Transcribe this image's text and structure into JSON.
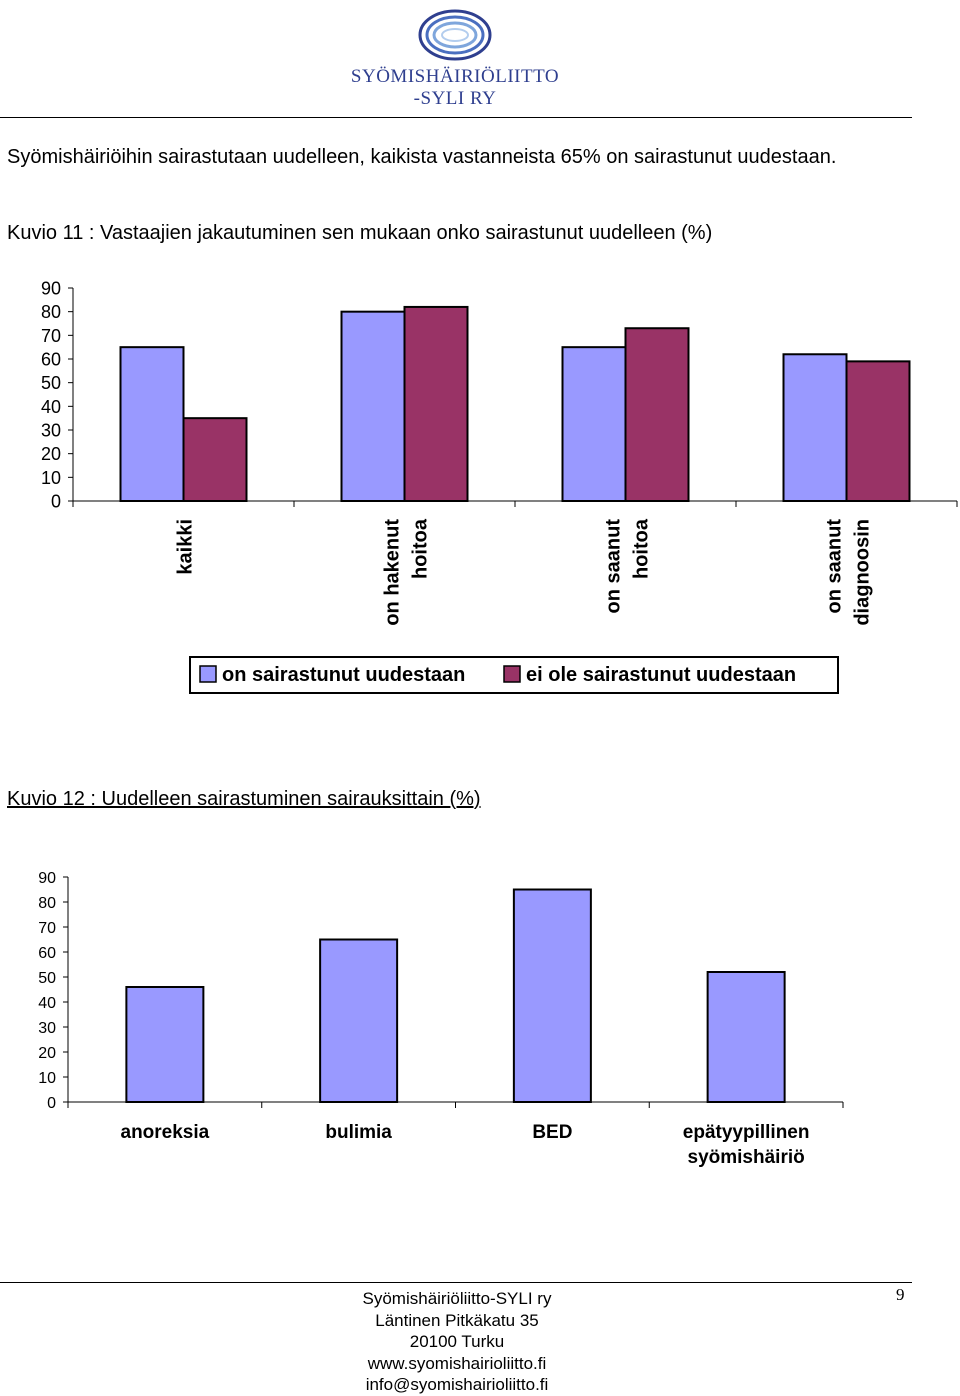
{
  "header": {
    "logo_line1": "SYÖMISHÄIRIÖLIITTO",
    "logo_line2": "-SYLI RY",
    "logo_color": "#2f3f8f"
  },
  "intro_text": "Syömishäiriöihin sairastutaan uudelleen, kaikista vastanneista 65% on sairastunut uudestaan.",
  "caption1": "Kuvio 11 : Vastaajien jakautuminen sen mukaan onko sairastunut uudelleen (%)",
  "caption2": "Kuvio 12 : Uudelleen sairastuminen sairauksittain (%)",
  "chart_data": [
    {
      "type": "bar",
      "title": "",
      "categories": [
        [
          "kaikki"
        ],
        [
          "on hakenut",
          "hoitoa"
        ],
        [
          "on saanut",
          "hoitoa"
        ],
        [
          "on saanut",
          "diagnoosin"
        ]
      ],
      "series": [
        {
          "name": "on sairastunut uudestaan",
          "values": [
            65,
            80,
            65,
            62
          ],
          "color": "#9999ff"
        },
        {
          "name": "ei ole sairastunut uudestaan",
          "values": [
            35,
            82,
            73,
            59
          ],
          "color": "#993366"
        }
      ],
      "yticks": [
        "0",
        "10",
        "20",
        "30",
        "40",
        "50",
        "60",
        "70",
        "80",
        "90"
      ],
      "ylim": [
        0,
        90
      ],
      "grid": false,
      "legend": "bottom"
    },
    {
      "type": "bar",
      "title": "",
      "categories": [
        [
          "anoreksia"
        ],
        [
          "bulimia"
        ],
        [
          "BED"
        ],
        [
          "epätyypillinen",
          "syömishäiriö"
        ]
      ],
      "series": [
        {
          "values": [
            46,
            65,
            85,
            52
          ],
          "color": "#9999ff"
        }
      ],
      "yticks": [
        "0",
        "10",
        "20",
        "30",
        "40",
        "50",
        "60",
        "70",
        "80",
        "90"
      ],
      "ylim": [
        0,
        90
      ],
      "grid": false
    }
  ],
  "footer": {
    "lines": [
      "Syömishäiriöliitto-SYLI ry",
      "Läntinen Pitkäkatu 35",
      "20100 Turku",
      "www.syomishairioliitto.fi",
      "info@syomishairioliitto.fi"
    ],
    "page_number": "9"
  }
}
